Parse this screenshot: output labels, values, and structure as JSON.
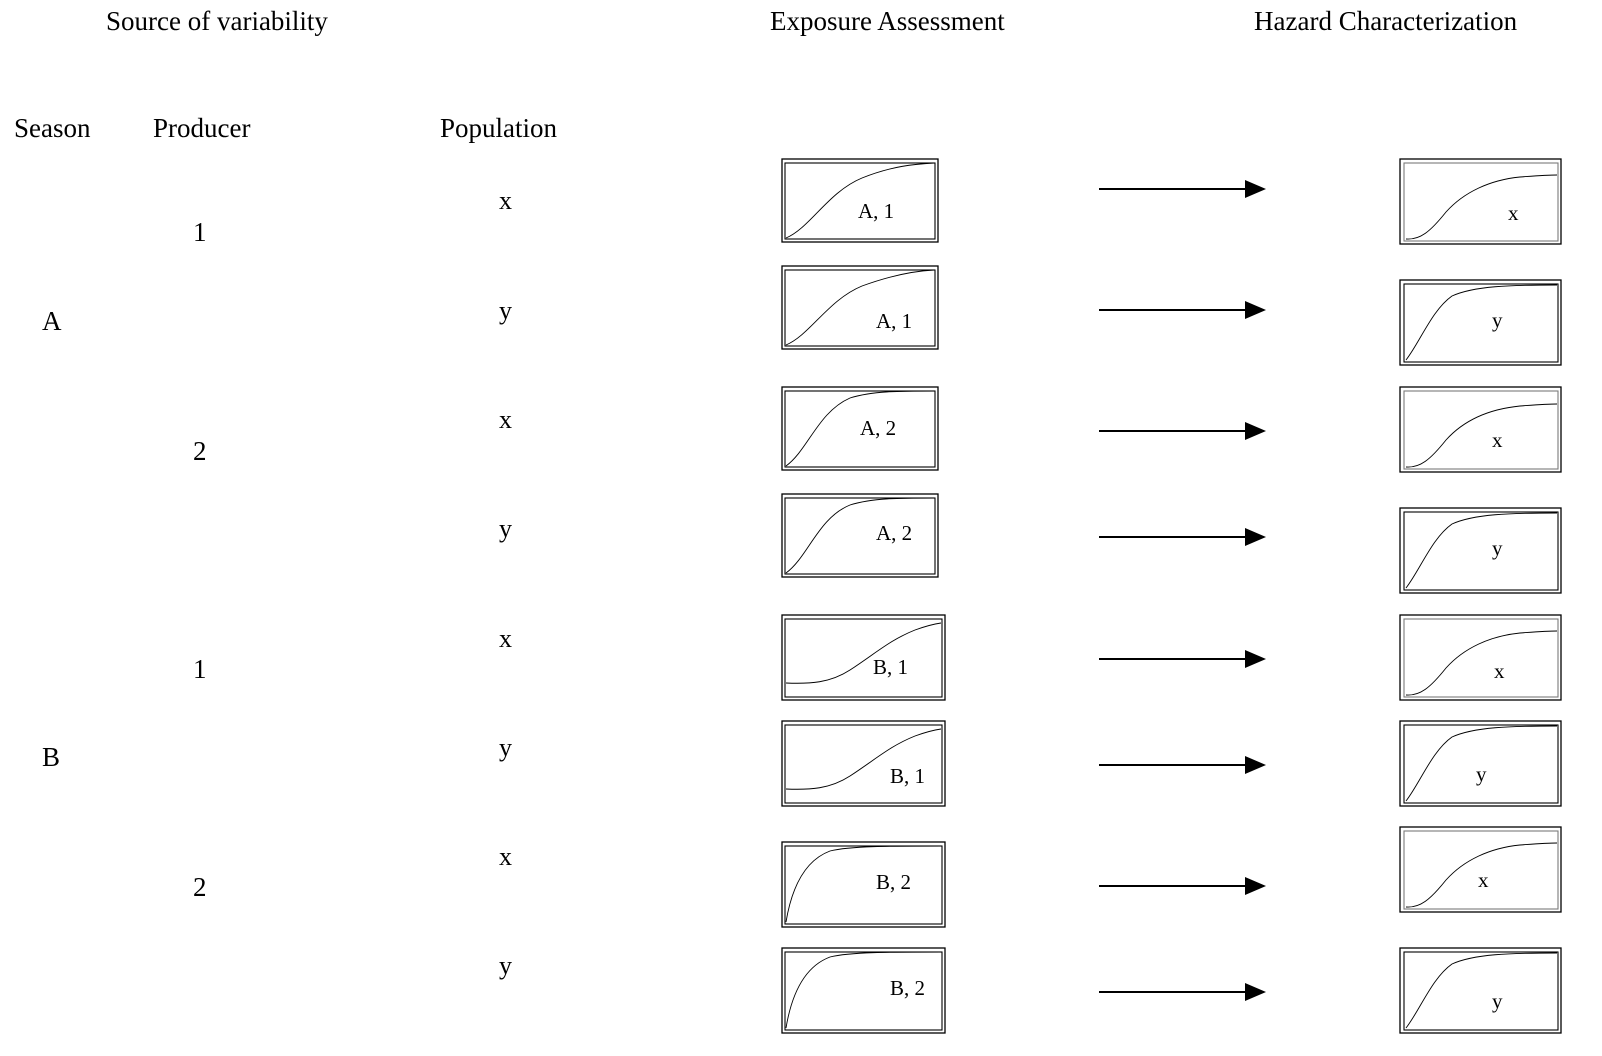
{
  "headers": {
    "source": "Source of variability",
    "exposure": "Exposure Assessment",
    "hazard": "Hazard Characterization"
  },
  "columns": {
    "season": "Season",
    "producer": "Producer",
    "population": "Population"
  },
  "seasons": [
    "A",
    "B"
  ],
  "producers": [
    "1",
    "2",
    "1",
    "2"
  ],
  "populations": [
    "x",
    "y",
    "x",
    "y",
    "x",
    "y",
    "x",
    "y"
  ],
  "exposure_labels": [
    "A, 1",
    "A, 1",
    "A, 2",
    "A, 2",
    "B, 1",
    "B, 1",
    "B, 2",
    "B, 2"
  ],
  "hazard_labels": [
    "x",
    "y",
    "x",
    "y",
    "x",
    "y",
    "x",
    "y"
  ]
}
